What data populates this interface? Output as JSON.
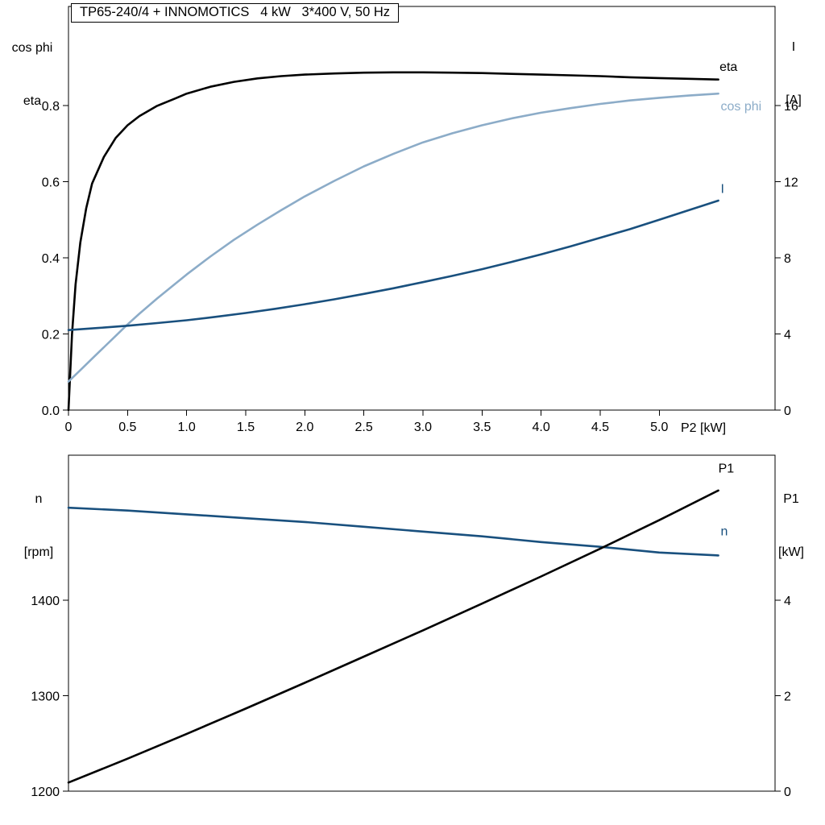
{
  "page": {
    "background": "#ffffff"
  },
  "chart_data": [
    {
      "id": "top",
      "type": "line",
      "title": "TP65-240/4 + INNOMOTICS   4 kW   3*400 V, 50 Hz",
      "x": {
        "label": "P2 [kW]",
        "min": 0,
        "max": 5.98,
        "ticks": [
          0,
          0.5,
          1,
          1.5,
          2,
          2.5,
          3,
          3.5,
          4,
          4.5,
          5
        ],
        "tick_labels": [
          "0",
          "0.5",
          "1.0",
          "1.5",
          "2.0",
          "2.5",
          "3.0",
          "3.5",
          "4.0",
          "4.5",
          "5.0"
        ]
      },
      "y_left": {
        "label_lines": [
          "cos phi",
          "eta"
        ],
        "min": 0,
        "max": 1.06,
        "ticks": [
          0,
          0.2,
          0.4,
          0.6,
          0.8
        ],
        "tick_labels": [
          "0.0",
          "0.2",
          "0.4",
          "0.6",
          "0.8"
        ]
      },
      "y_right": {
        "label_lines": [
          "I",
          "[A]"
        ],
        "min": 0,
        "max": 21.2,
        "ticks": [
          0,
          4,
          8,
          12,
          16
        ],
        "tick_labels": [
          "0",
          "4",
          "8",
          "12",
          "16"
        ]
      },
      "grid": false,
      "series": [
        {
          "name": "eta",
          "color": "#000000",
          "axis": "left",
          "points": [
            [
              0,
              0
            ],
            [
              0.03,
              0.2
            ],
            [
              0.06,
              0.33
            ],
            [
              0.1,
              0.44
            ],
            [
              0.15,
              0.53
            ],
            [
              0.2,
              0.595
            ],
            [
              0.3,
              0.665
            ],
            [
              0.4,
              0.715
            ],
            [
              0.5,
              0.748
            ],
            [
              0.6,
              0.772
            ],
            [
              0.75,
              0.799
            ],
            [
              0.9,
              0.818
            ],
            [
              1,
              0.831
            ],
            [
              1.2,
              0.849
            ],
            [
              1.4,
              0.862
            ],
            [
              1.6,
              0.871
            ],
            [
              1.8,
              0.877
            ],
            [
              2,
              0.881
            ],
            [
              2.25,
              0.884
            ],
            [
              2.5,
              0.886
            ],
            [
              2.75,
              0.887
            ],
            [
              3,
              0.887
            ],
            [
              3.25,
              0.886
            ],
            [
              3.5,
              0.885
            ],
            [
              3.75,
              0.883
            ],
            [
              4,
              0.881
            ],
            [
              4.25,
              0.879
            ],
            [
              4.5,
              0.877
            ],
            [
              4.75,
              0.874
            ],
            [
              5,
              0.872
            ],
            [
              5.25,
              0.87
            ],
            [
              5.5,
              0.868
            ]
          ]
        },
        {
          "name": "cos phi",
          "color": "#8CACC8",
          "axis": "left",
          "points": [
            [
              0,
              0.075
            ],
            [
              0.1,
              0.105
            ],
            [
              0.2,
              0.135
            ],
            [
              0.3,
              0.165
            ],
            [
              0.4,
              0.195
            ],
            [
              0.5,
              0.225
            ],
            [
              0.6,
              0.253
            ],
            [
              0.75,
              0.293
            ],
            [
              0.9,
              0.331
            ],
            [
              1,
              0.356
            ],
            [
              1.2,
              0.403
            ],
            [
              1.4,
              0.447
            ],
            [
              1.6,
              0.487
            ],
            [
              1.8,
              0.525
            ],
            [
              2,
              0.561
            ],
            [
              2.25,
              0.602
            ],
            [
              2.5,
              0.64
            ],
            [
              2.75,
              0.673
            ],
            [
              3,
              0.703
            ],
            [
              3.25,
              0.727
            ],
            [
              3.5,
              0.748
            ],
            [
              3.75,
              0.766
            ],
            [
              4,
              0.781
            ],
            [
              4.25,
              0.793
            ],
            [
              4.5,
              0.804
            ],
            [
              4.75,
              0.813
            ],
            [
              5,
              0.82
            ],
            [
              5.25,
              0.826
            ],
            [
              5.5,
              0.831
            ]
          ]
        },
        {
          "name": "I",
          "color": "#19507E",
          "axis": "right",
          "points": [
            [
              0,
              4.2
            ],
            [
              0.25,
              4.31
            ],
            [
              0.5,
              4.43
            ],
            [
              0.75,
              4.57
            ],
            [
              1,
              4.72
            ],
            [
              1.25,
              4.9
            ],
            [
              1.5,
              5.1
            ],
            [
              1.75,
              5.32
            ],
            [
              2,
              5.56
            ],
            [
              2.25,
              5.82
            ],
            [
              2.5,
              6.1
            ],
            [
              2.75,
              6.4
            ],
            [
              3,
              6.72
            ],
            [
              3.25,
              7.05
            ],
            [
              3.5,
              7.4
            ],
            [
              3.75,
              7.78
            ],
            [
              4,
              8.18
            ],
            [
              4.25,
              8.6
            ],
            [
              4.5,
              9.05
            ],
            [
              4.75,
              9.5
            ],
            [
              5,
              10
            ],
            [
              5.25,
              10.5
            ],
            [
              5.5,
              11
            ]
          ]
        }
      ],
      "curve_labels": [
        {
          "text": "eta",
          "color": "#000000",
          "axis": "left",
          "x": 5.51,
          "y": 0.891
        },
        {
          "text": "cos phi",
          "color": "#8CACC8",
          "axis": "left",
          "x": 5.52,
          "y": 0.787
        },
        {
          "text": "I",
          "color": "#19507E",
          "axis": "right",
          "x": 5.52,
          "y": 11.4
        }
      ]
    },
    {
      "id": "bottom",
      "type": "line",
      "title": "",
      "x": {
        "label": "",
        "min": 0,
        "max": 5.98,
        "ticks": [],
        "tick_labels": []
      },
      "y_left": {
        "label_lines": [
          "n",
          "[rpm]"
        ],
        "min": 1200,
        "max": 1552,
        "ticks": [
          1200,
          1300,
          1400
        ],
        "tick_labels": [
          "1200",
          "1300",
          "1400"
        ]
      },
      "y_right": {
        "label_lines": [
          "P1",
          "[kW]"
        ],
        "min": 0,
        "max": 7.04,
        "ticks": [
          0,
          2,
          4
        ],
        "tick_labels": [
          "0",
          "2",
          "4"
        ]
      },
      "grid": false,
      "series": [
        {
          "name": "n",
          "color": "#19507E",
          "axis": "left",
          "points": [
            [
              0,
              1497
            ],
            [
              0.5,
              1494
            ],
            [
              1,
              1490
            ],
            [
              1.5,
              1486
            ],
            [
              2,
              1482
            ],
            [
              2.5,
              1477
            ],
            [
              3,
              1472
            ],
            [
              3.5,
              1467
            ],
            [
              4,
              1461
            ],
            [
              4.5,
              1456
            ],
            [
              5,
              1450
            ],
            [
              5.5,
              1447
            ]
          ]
        },
        {
          "name": "P1",
          "color": "#000000",
          "axis": "right",
          "points": [
            [
              0,
              0.18
            ],
            [
              0.5,
              0.68
            ],
            [
              1,
              1.2
            ],
            [
              1.5,
              1.73
            ],
            [
              2,
              2.27
            ],
            [
              2.5,
              2.82
            ],
            [
              3,
              3.37
            ],
            [
              3.5,
              3.93
            ],
            [
              4,
              4.5
            ],
            [
              4.5,
              5.08
            ],
            [
              5,
              5.68
            ],
            [
              5.5,
              6.3
            ]
          ]
        }
      ],
      "curve_labels": [
        {
          "text": "P1",
          "color": "#000000",
          "axis": "right",
          "x": 5.5,
          "y": 6.68
        },
        {
          "text": "n",
          "color": "#19507E",
          "axis": "left",
          "x": 5.52,
          "y": 1468
        }
      ]
    }
  ]
}
